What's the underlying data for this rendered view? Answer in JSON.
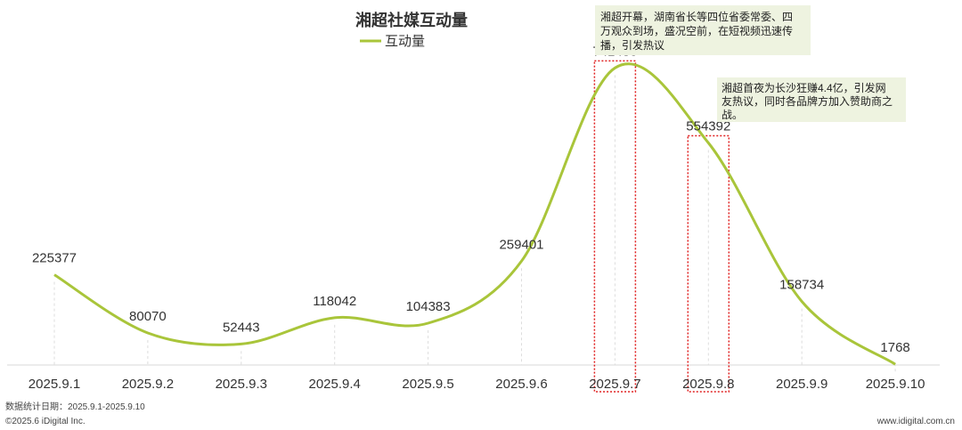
{
  "chart_data": {
    "type": "line",
    "title": "湘超社媒互动量",
    "categories": [
      "2025.9.1",
      "2025.9.2",
      "2025.9.3",
      "2025.9.4",
      "2025.9.5",
      "2025.9.6",
      "2025.9.7",
      "2025.9.8",
      "2025.9.9",
      "2025.9.10"
    ],
    "series": [
      {
        "name": "互动量",
        "values": [
          225377,
          80070,
          52443,
          118042,
          104383,
          259401,
          741480,
          554392,
          158734,
          1768
        ],
        "color": "#a9c53a"
      }
    ],
    "ylim": [
      0,
      800000
    ],
    "xlabel": "",
    "ylabel": "",
    "grid": false,
    "legend_position": "top-center",
    "highlight_indices": [
      6,
      7
    ],
    "highlight_color": "#e02020"
  },
  "annotations": [
    {
      "text_lines": [
        "湘超开幕，湖南省长等四位省委常委、四",
        "万观众到场，盛况空前，在短视频迅速传",
        "播，引发热议"
      ],
      "target_index": 6
    },
    {
      "text_lines": [
        "湘超首夜为长沙狂赚4.4亿，引发网",
        "友热议，同时各品牌方加入赞助商之",
        "战。"
      ],
      "target_index": 7
    }
  ],
  "footer": {
    "date_range": "数据统计日期：2025.9.1-2025.9.10",
    "copyright": "©2025.6 iDigital Inc.",
    "website": "www.idigital.com.cn"
  }
}
